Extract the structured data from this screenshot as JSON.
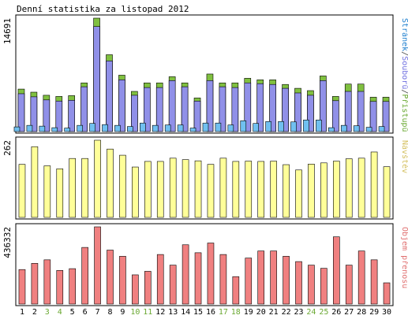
{
  "chart_data": [
    {
      "type": "bar",
      "title": "Denní statistika za listopad 2012",
      "x": [
        "1",
        "2",
        "3",
        "4",
        "5",
        "6",
        "7",
        "8",
        "9",
        "10",
        "11",
        "12",
        "13",
        "14",
        "15",
        "16",
        "17",
        "18",
        "19",
        "20",
        "21",
        "22",
        "23",
        "24",
        "25",
        "26",
        "27",
        "28",
        "29",
        "30"
      ],
      "weekend_days": [
        "3",
        "4",
        "10",
        "11",
        "17",
        "18",
        "24",
        "25"
      ],
      "ymax_label": "14691",
      "ylim": [
        0,
        14691
      ],
      "legend": {
        "parts": [
          {
            "text": "Stránek",
            "color": "#1e7fcf"
          },
          {
            "text": "/",
            "color": "#444444"
          },
          {
            "text": "Soubor",
            "color": "#7070e0"
          },
          {
            "text": "ů",
            "color": "#7070e0"
          },
          {
            "text": "/",
            "color": "#444444"
          },
          {
            "text": "Přístupů",
            "color": "#6aa832"
          }
        ],
        "placement": "right-vertical"
      },
      "series": [
        {
          "name": "Přístupů",
          "color": "#80c040",
          "values": [
            5500,
            5100,
            4700,
            4550,
            4650,
            6300,
            14691,
            9950,
            7300,
            5200,
            6300,
            6300,
            7100,
            6300,
            4350,
            7450,
            6300,
            6300,
            6900,
            6700,
            6700,
            6100,
            5600,
            5300,
            7200,
            4550,
            6150,
            6150,
            4450,
            4450
          ]
        },
        {
          "name": "Souborů",
          "color": "#9090e8",
          "values": [
            4900,
            4500,
            4100,
            3950,
            4050,
            5800,
            13600,
            9150,
            6700,
            4700,
            5700,
            5700,
            6600,
            5800,
            3950,
            6600,
            5800,
            5700,
            6300,
            6200,
            6100,
            5600,
            5000,
            4700,
            6600,
            4000,
            5200,
            5200,
            3900,
            3900
          ]
        },
        {
          "name": "Stránek",
          "color": "#70c0f0",
          "values": [
            600,
            800,
            700,
            500,
            450,
            800,
            1050,
            900,
            800,
            650,
            1100,
            800,
            850,
            850,
            450,
            1100,
            1100,
            850,
            1400,
            1050,
            1300,
            1300,
            1250,
            1500,
            1500,
            500,
            800,
            750,
            550,
            650
          ]
        }
      ]
    },
    {
      "type": "bar",
      "ymax_label": "262",
      "ylim": [
        0,
        262
      ],
      "legend": {
        "parts": [
          {
            "text": "Návštěv",
            "color": "#d4c060"
          }
        ],
        "placement": "right-vertical"
      },
      "series": [
        {
          "name": "Návštěv",
          "color": "#ffff99",
          "values": [
            180,
            240,
            175,
            165,
            200,
            200,
            262,
            232,
            211,
            171,
            190,
            190,
            201,
            196,
            192,
            180,
            201,
            190,
            191,
            190,
            191,
            179,
            161,
            181,
            185,
            191,
            199,
            201,
            222,
            172
          ]
        }
      ]
    },
    {
      "type": "bar",
      "ymax_label": "436332",
      "ylim": [
        0,
        436332
      ],
      "legend": {
        "parts": [
          {
            "text": "Objem přenosu",
            "color": "#e07070"
          }
        ],
        "placement": "right-vertical"
      },
      "series": [
        {
          "name": "Objem přenosu",
          "color": "#f08080",
          "values": [
            195000,
            230000,
            250000,
            190000,
            200000,
            320000,
            436332,
            305000,
            270000,
            165000,
            185000,
            280000,
            220000,
            335000,
            290000,
            345000,
            280000,
            155000,
            260000,
            300000,
            300000,
            270000,
            240000,
            220000,
            202000,
            380000,
            220000,
            300000,
            250000,
            120000
          ]
        }
      ]
    }
  ]
}
